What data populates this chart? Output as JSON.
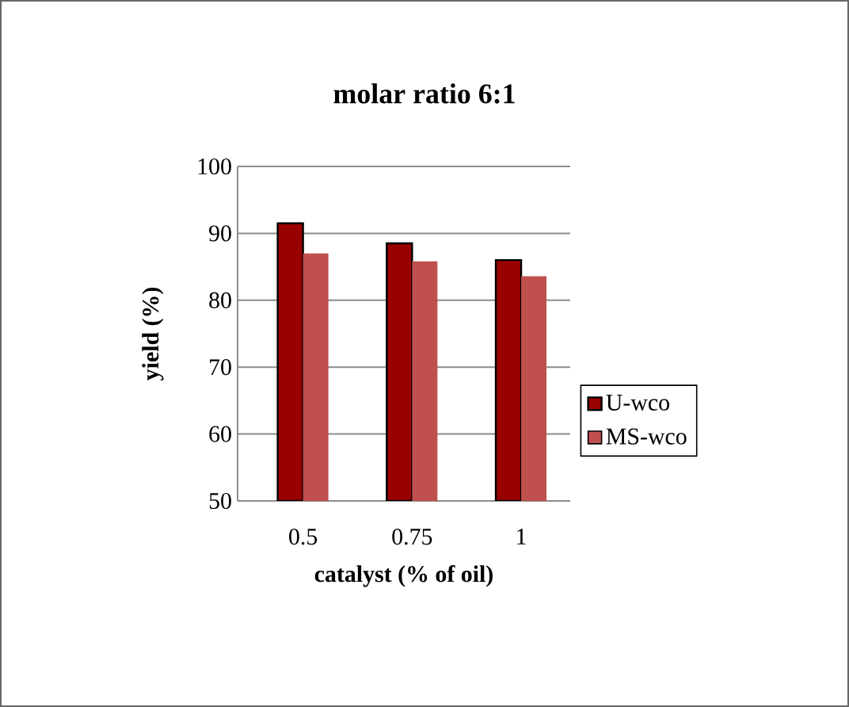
{
  "chart_data": {
    "type": "bar",
    "title": "molar ratio 6:1",
    "xlabel": "catalyst (% of oil)",
    "ylabel": "yield (%)",
    "categories": [
      "0.5",
      "0.75",
      "1"
    ],
    "series": [
      {
        "name": "U-wco",
        "color": "#990000",
        "values": [
          91.5,
          88.5,
          86.0
        ]
      },
      {
        "name": "MS-wco",
        "color": "#c0504d",
        "values": [
          87.0,
          85.8,
          83.6
        ]
      }
    ],
    "ylim": [
      50,
      100
    ],
    "yticks": [
      50,
      60,
      70,
      80,
      90,
      100
    ],
    "grid": "y",
    "legend": "right"
  }
}
